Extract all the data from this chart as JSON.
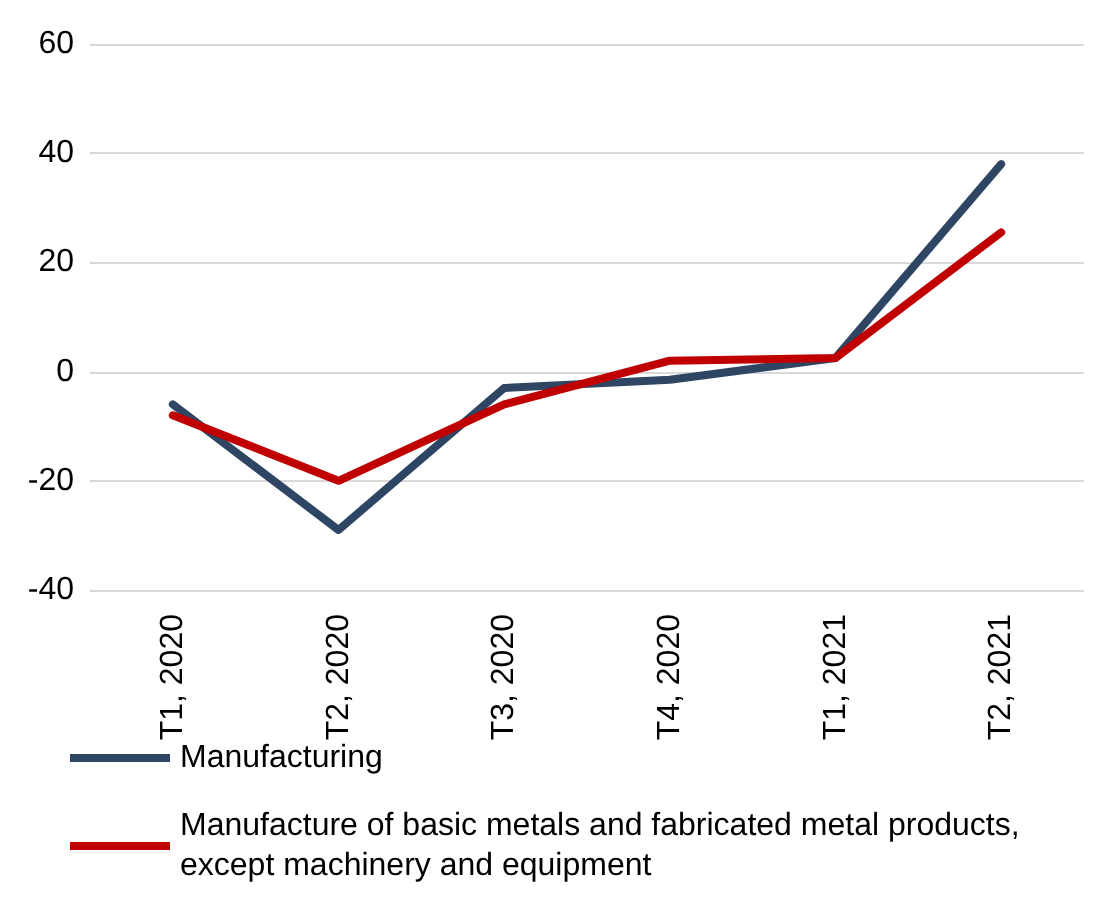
{
  "chart_data": {
    "type": "line",
    "categories": [
      "T1, 2020",
      "T2, 2020",
      "T3, 2020",
      "T4, 2020",
      "T1, 2021",
      "T2, 2021"
    ],
    "series": [
      {
        "name": "Manufacturing",
        "color": "#2e4564",
        "values": [
          -6,
          -29,
          -3,
          -1.5,
          2.5,
          38
        ]
      },
      {
        "name": "Manufacture of basic metals and fabricated metal products, except machinery and equipment",
        "color": "#c00000",
        "values": [
          -8,
          -20,
          -6,
          2,
          2.5,
          25.5
        ]
      }
    ],
    "ylim": [
      -40,
      60
    ],
    "yticks": [
      -40,
      -20,
      0,
      20,
      40,
      60
    ],
    "grid": "y",
    "legend": "bottom",
    "marker": "none",
    "line_style": "solid"
  }
}
